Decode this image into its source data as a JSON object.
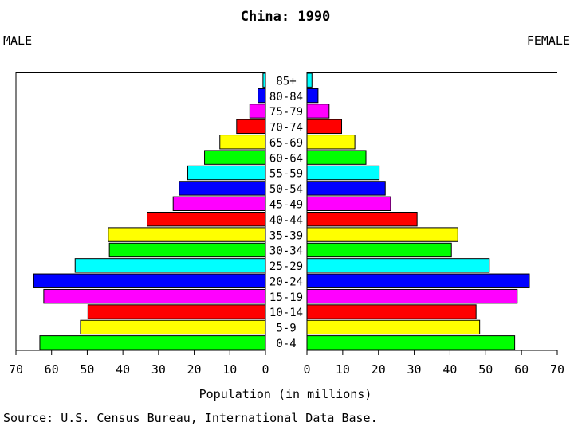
{
  "chart_data": {
    "type": "bar",
    "subtype": "population-pyramid",
    "title": "China: 1990",
    "left_label": "MALE",
    "right_label": "FEMALE",
    "xlabel": "Population (in millions)",
    "source": "Source: U.S. Census Bureau, International Data Base.",
    "xlim": [
      0,
      70
    ],
    "male_ticks": [
      "70",
      "60",
      "50",
      "40",
      "30",
      "20",
      "10",
      "0"
    ],
    "female_ticks": [
      "0",
      "10",
      "20",
      "30",
      "40",
      "50",
      "60",
      "70"
    ],
    "categories": [
      "85+",
      "80-84",
      "75-79",
      "70-74",
      "65-69",
      "60-64",
      "55-59",
      "50-54",
      "45-49",
      "40-44",
      "35-39",
      "30-34",
      "25-29",
      "20-24",
      "15-19",
      "10-14",
      "5-9",
      "0-4"
    ],
    "series": [
      {
        "name": "MALE",
        "values": [
          0.7,
          2.1,
          4.4,
          8.1,
          12.8,
          17.1,
          21.8,
          24.2,
          25.9,
          33.2,
          44.1,
          43.8,
          53.4,
          65.0,
          62.2,
          49.8,
          51.9,
          63.3
        ]
      },
      {
        "name": "FEMALE",
        "values": [
          1.4,
          3.1,
          6.2,
          9.7,
          13.4,
          16.5,
          20.2,
          21.9,
          23.4,
          30.8,
          42.2,
          40.4,
          51.0,
          62.2,
          58.8,
          47.3,
          48.3,
          58.1
        ]
      }
    ],
    "colors": [
      "#00ffff",
      "#0000ff",
      "#ff00ff",
      "#ff0000",
      "#ffff00",
      "#00ff00",
      "#00ffff",
      "#0000ff",
      "#ff00ff",
      "#ff0000",
      "#ffff00",
      "#00ff00",
      "#00ffff",
      "#0000ff",
      "#ff00ff",
      "#ff0000",
      "#ffff00",
      "#00ff00"
    ],
    "grid": false
  }
}
